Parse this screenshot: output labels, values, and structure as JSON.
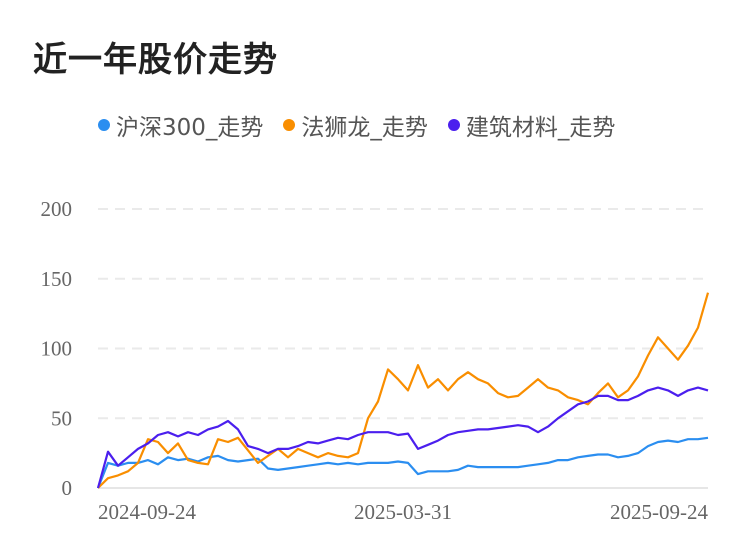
{
  "title": "近一年股价走势",
  "chart_data": {
    "type": "line",
    "title": "近一年股价走势",
    "x_start": "2024-09-24",
    "x_end": "2025-09-24",
    "x_ticks": [
      "2024-09-24",
      "2025-03-31",
      "2025-09-24"
    ],
    "y_ticks": [
      0,
      50,
      100,
      150,
      200
    ],
    "ylim": [
      0,
      200
    ],
    "grid": true,
    "legend_position": "top",
    "series": [
      {
        "name": "沪深300_走势",
        "color": "#2b8ef0",
        "values": [
          0,
          18,
          16,
          18,
          18,
          20,
          17,
          22,
          20,
          21,
          19,
          22,
          23,
          20,
          19,
          20,
          21,
          14,
          13,
          14,
          15,
          16,
          17,
          18,
          17,
          18,
          17,
          18,
          18,
          18,
          19,
          18,
          10,
          12,
          12,
          12,
          13,
          16,
          15,
          15,
          15,
          15,
          15,
          16,
          17,
          18,
          20,
          20,
          22,
          23,
          24,
          24,
          22,
          23,
          25,
          30,
          33,
          34,
          33,
          35,
          35,
          36
        ]
      },
      {
        "name": "法狮龙_走势",
        "color": "#f98e00",
        "values": [
          0,
          7,
          9,
          12,
          18,
          35,
          33,
          25,
          32,
          20,
          18,
          17,
          35,
          33,
          36,
          27,
          18,
          23,
          28,
          22,
          28,
          25,
          22,
          25,
          23,
          22,
          25,
          50,
          62,
          85,
          78,
          70,
          88,
          72,
          78,
          70,
          78,
          83,
          78,
          75,
          68,
          65,
          66,
          72,
          78,
          72,
          70,
          65,
          63,
          60,
          68,
          75,
          65,
          70,
          80,
          95,
          108,
          100,
          92,
          102,
          115,
          140
        ]
      },
      {
        "name": "建筑材料_走势",
        "color": "#4b1fee",
        "values": [
          0,
          26,
          16,
          22,
          28,
          32,
          38,
          40,
          37,
          40,
          38,
          42,
          44,
          48,
          42,
          30,
          28,
          25,
          28,
          28,
          30,
          33,
          32,
          34,
          36,
          35,
          38,
          40,
          40,
          40,
          38,
          39,
          28,
          31,
          34,
          38,
          40,
          41,
          42,
          42,
          43,
          44,
          45,
          44,
          40,
          44,
          50,
          55,
          60,
          62,
          66,
          66,
          63,
          63,
          66,
          70,
          72,
          70,
          66,
          70,
          72,
          70
        ]
      }
    ]
  }
}
